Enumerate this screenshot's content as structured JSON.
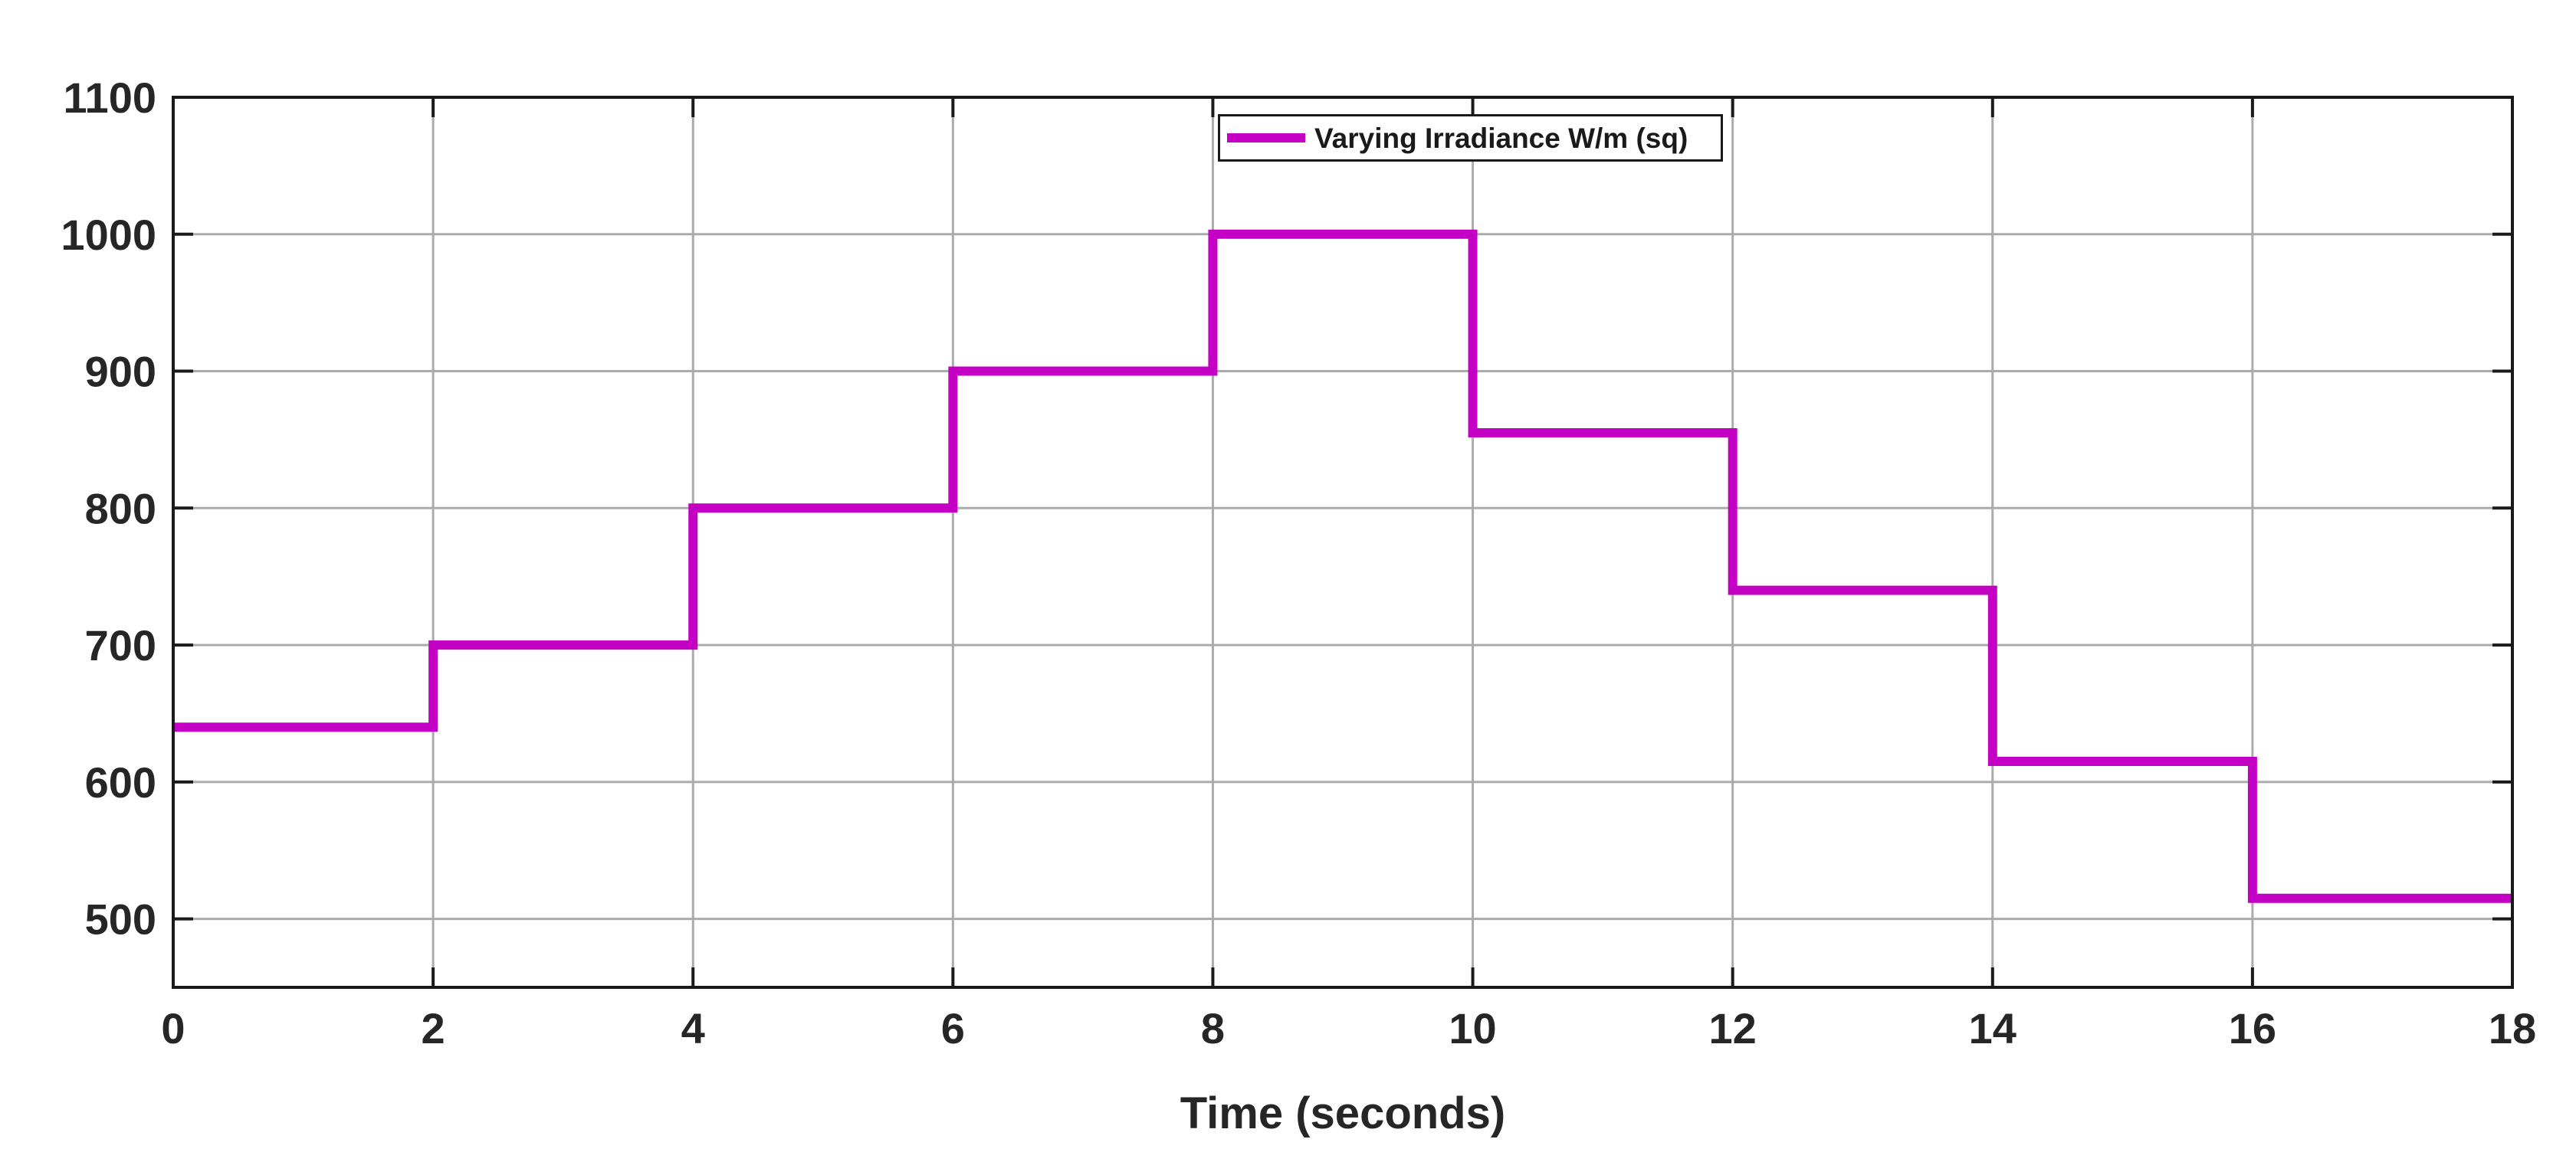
{
  "chart_data": {
    "type": "line",
    "line_style": "stairs",
    "title": "",
    "xlabel": "Time (seconds)",
    "ylabel": "",
    "xlim": [
      0,
      18
    ],
    "ylim": [
      450,
      1100
    ],
    "xticks": [
      0,
      2,
      4,
      6,
      8,
      10,
      12,
      14,
      16,
      18
    ],
    "yticks": [
      500,
      600,
      700,
      800,
      900,
      1000,
      1100
    ],
    "grid": true,
    "legend_position": "top-center",
    "series": [
      {
        "name": "Varying Irradiance W/m (sq)",
        "color": "#c400c4",
        "line_width": 12,
        "step_edges_x": [
          0,
          2,
          4,
          6,
          8,
          10,
          12,
          14,
          16,
          18
        ],
        "step_values": [
          640,
          700,
          800,
          900,
          1000,
          855,
          740,
          615,
          515
        ]
      }
    ]
  },
  "legend": {
    "label": "Varying Irradiance W/m (sq)",
    "boxed": true
  },
  "colors": {
    "line": "#c400c4",
    "grid": "#ababab",
    "spine": "#1a1a1a",
    "tick_label": "#262626",
    "background": "#ffffff"
  }
}
